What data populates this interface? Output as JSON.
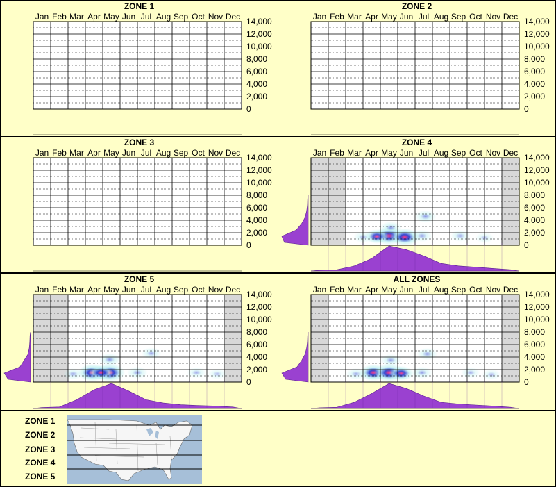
{
  "months": [
    "Jan",
    "Feb",
    "Mar",
    "Apr",
    "May",
    "Jun",
    "Jul",
    "Aug",
    "Sep",
    "Oct",
    "Nov",
    "Dec"
  ],
  "y_ticks": [
    "14,000",
    "12,000",
    "10,000",
    "8,000",
    "6,000",
    "4,000",
    "2,000",
    "0"
  ],
  "zone_labels": [
    "ZONE 1",
    "ZONE 2",
    "ZONE 3",
    "ZONE 4",
    "ZONE 5"
  ],
  "colors": {
    "background": "#ffffc8",
    "inactive_month_shade": "#d8d8d8",
    "profile_fill": "#9a41d0",
    "heat_low": "#b8f0f0",
    "heat_mid": "#2a3fd0",
    "heat_high": "#ff3a8a"
  },
  "chart_data": [
    {
      "type": "heatmap",
      "title": "ZONE 1",
      "x_categories": [
        "Jan",
        "Feb",
        "Mar",
        "Apr",
        "May",
        "Jun",
        "Jul",
        "Aug",
        "Sep",
        "Oct",
        "Nov",
        "Dec"
      ],
      "y_range": [
        0,
        14000
      ],
      "y_ticks": [
        0,
        2000,
        4000,
        6000,
        8000,
        10000,
        12000,
        14000
      ],
      "inactive_months": [],
      "blobs": [],
      "monthly_profile": [],
      "elevation_profile": []
    },
    {
      "type": "heatmap",
      "title": "ZONE 2",
      "x_categories": [
        "Jan",
        "Feb",
        "Mar",
        "Apr",
        "May",
        "Jun",
        "Jul",
        "Aug",
        "Sep",
        "Oct",
        "Nov",
        "Dec"
      ],
      "y_range": [
        0,
        14000
      ],
      "y_ticks": [
        0,
        2000,
        4000,
        6000,
        8000,
        10000,
        12000,
        14000
      ],
      "inactive_months": [],
      "blobs": [],
      "monthly_profile": [],
      "elevation_profile": []
    },
    {
      "type": "heatmap",
      "title": "ZONE 3",
      "x_categories": [
        "Jan",
        "Feb",
        "Mar",
        "Apr",
        "May",
        "Jun",
        "Jul",
        "Aug",
        "Sep",
        "Oct",
        "Nov",
        "Dec"
      ],
      "y_range": [
        0,
        14000
      ],
      "y_ticks": [
        0,
        2000,
        4000,
        6000,
        8000,
        10000,
        12000,
        14000
      ],
      "inactive_months": [],
      "blobs": [],
      "monthly_profile": [],
      "elevation_profile": []
    },
    {
      "type": "heatmap",
      "title": "ZONE 4",
      "x_categories": [
        "Jan",
        "Feb",
        "Mar",
        "Apr",
        "May",
        "Jun",
        "Jul",
        "Aug",
        "Sep",
        "Oct",
        "Nov",
        "Dec"
      ],
      "y_range": [
        0,
        14000
      ],
      "y_ticks": [
        0,
        2000,
        4000,
        6000,
        8000,
        10000,
        12000,
        14000
      ],
      "inactive_months": [
        0,
        1,
        11
      ],
      "blobs": [
        {
          "month": 4.5,
          "value": 1500,
          "intensity": 1.0
        },
        {
          "month": 5.4,
          "value": 1300,
          "intensity": 0.9
        },
        {
          "month": 3.8,
          "value": 1400,
          "intensity": 0.55
        },
        {
          "month": 4.6,
          "value": 2800,
          "intensity": 0.35
        },
        {
          "month": 6.6,
          "value": 4600,
          "intensity": 0.35
        },
        {
          "month": 6.4,
          "value": 1500,
          "intensity": 0.3
        },
        {
          "month": 8.6,
          "value": 1500,
          "intensity": 0.25
        },
        {
          "month": 3.0,
          "value": 1300,
          "intensity": 0.2
        },
        {
          "month": 10.0,
          "value": 1200,
          "intensity": 0.15
        }
      ],
      "monthly_profile": [
        0.03,
        0.05,
        0.2,
        0.5,
        1.0,
        0.85,
        0.6,
        0.3,
        0.2,
        0.15,
        0.1,
        0.05
      ],
      "elevation_profile": [
        0.9,
        1.0,
        0.45,
        0.25,
        0.12,
        0.06,
        0.03,
        0.02
      ]
    },
    {
      "type": "heatmap",
      "title": "ZONE 5",
      "x_categories": [
        "Jan",
        "Feb",
        "Mar",
        "Apr",
        "May",
        "Jun",
        "Jul",
        "Aug",
        "Sep",
        "Oct",
        "Nov",
        "Dec"
      ],
      "y_range": [
        0,
        14000
      ],
      "y_ticks": [
        0,
        2000,
        4000,
        6000,
        8000,
        10000,
        12000,
        14000
      ],
      "inactive_months": [
        0,
        1,
        11
      ],
      "blobs": [
        {
          "month": 3.4,
          "value": 1500,
          "intensity": 0.9
        },
        {
          "month": 4.4,
          "value": 1500,
          "intensity": 1.0
        },
        {
          "month": 3.9,
          "value": 1500,
          "intensity": 0.6
        },
        {
          "month": 4.4,
          "value": 3600,
          "intensity": 0.35
        },
        {
          "month": 6.8,
          "value": 4600,
          "intensity": 0.25
        },
        {
          "month": 6.0,
          "value": 1500,
          "intensity": 0.3
        },
        {
          "month": 9.4,
          "value": 1500,
          "intensity": 0.2
        },
        {
          "month": 2.3,
          "value": 1300,
          "intensity": 0.25
        },
        {
          "month": 10.6,
          "value": 1300,
          "intensity": 0.15
        }
      ],
      "monthly_profile": [
        0.04,
        0.06,
        0.35,
        0.75,
        1.0,
        0.7,
        0.35,
        0.22,
        0.15,
        0.12,
        0.1,
        0.06
      ],
      "elevation_profile": [
        0.85,
        1.0,
        0.4,
        0.25,
        0.1,
        0.05,
        0.03,
        0.02
      ]
    },
    {
      "type": "heatmap",
      "title": "ALL ZONES",
      "x_categories": [
        "Jan",
        "Feb",
        "Mar",
        "Apr",
        "May",
        "Jun",
        "Jul",
        "Aug",
        "Sep",
        "Oct",
        "Nov",
        "Dec"
      ],
      "y_range": [
        0,
        14000
      ],
      "y_ticks": [
        0,
        2000,
        4000,
        6000,
        8000,
        10000,
        12000,
        14000
      ],
      "inactive_months": [
        0,
        11
      ],
      "blobs": [
        {
          "month": 3.6,
          "value": 1500,
          "intensity": 0.8
        },
        {
          "month": 4.5,
          "value": 1500,
          "intensity": 1.0
        },
        {
          "month": 5.2,
          "value": 1400,
          "intensity": 0.6
        },
        {
          "month": 4.6,
          "value": 3500,
          "intensity": 0.3
        },
        {
          "month": 6.7,
          "value": 4500,
          "intensity": 0.3
        },
        {
          "month": 6.4,
          "value": 1500,
          "intensity": 0.3
        },
        {
          "month": 9.2,
          "value": 1500,
          "intensity": 0.2
        },
        {
          "month": 2.6,
          "value": 1300,
          "intensity": 0.25
        },
        {
          "month": 10.4,
          "value": 1200,
          "intensity": 0.15
        }
      ],
      "monthly_profile": [
        0.03,
        0.05,
        0.25,
        0.6,
        1.0,
        0.8,
        0.5,
        0.25,
        0.18,
        0.14,
        0.1,
        0.05
      ],
      "elevation_profile": [
        0.85,
        1.0,
        0.42,
        0.25,
        0.12,
        0.06,
        0.03,
        0.02
      ]
    }
  ]
}
